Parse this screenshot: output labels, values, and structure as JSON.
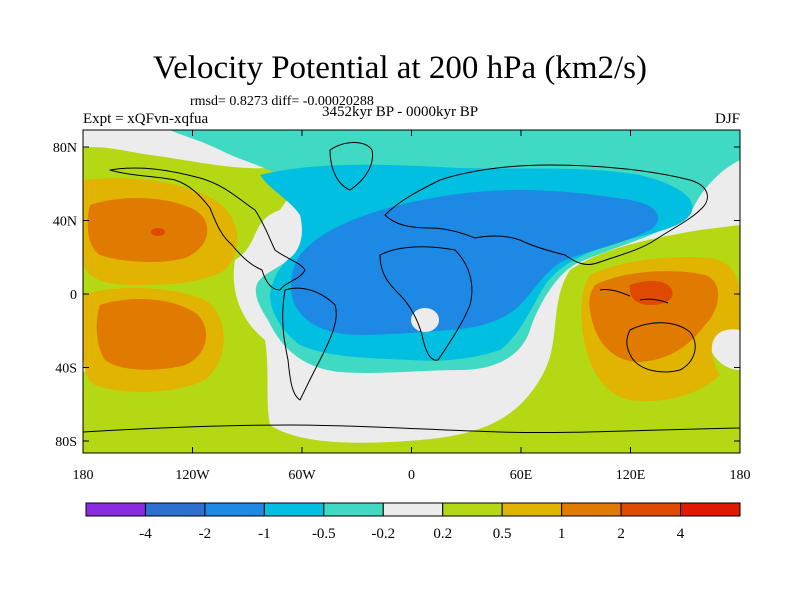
{
  "title": "Velocity Potential at 200 hPa (km2/s)",
  "stats": "rmsd= 0.8273 diff= -0.00020288",
  "experiment": "Expt = xQFvn-xqfua",
  "period": "3452kyr BP - 0000kyr BP",
  "season": "DJF",
  "axes": {
    "lon_ticks": [
      "180",
      "120W",
      "60W",
      "0",
      "60E",
      "120E",
      "180"
    ],
    "lat_ticks": [
      "80N",
      "40N",
      "0",
      "40S",
      "80S"
    ]
  },
  "colorbar": {
    "colors": [
      "#8a2be2",
      "#2f6fd0",
      "#1e88e5",
      "#00bfe0",
      "#3fd9c4",
      "#ececec",
      "#b4d914",
      "#e0b400",
      "#e07a00",
      "#e04a00",
      "#e01a00"
    ],
    "labels": [
      "-4",
      "-2",
      "-1",
      "-0.5",
      "-0.2",
      "0.2",
      "0.5",
      "1",
      "2",
      "4"
    ]
  }
}
